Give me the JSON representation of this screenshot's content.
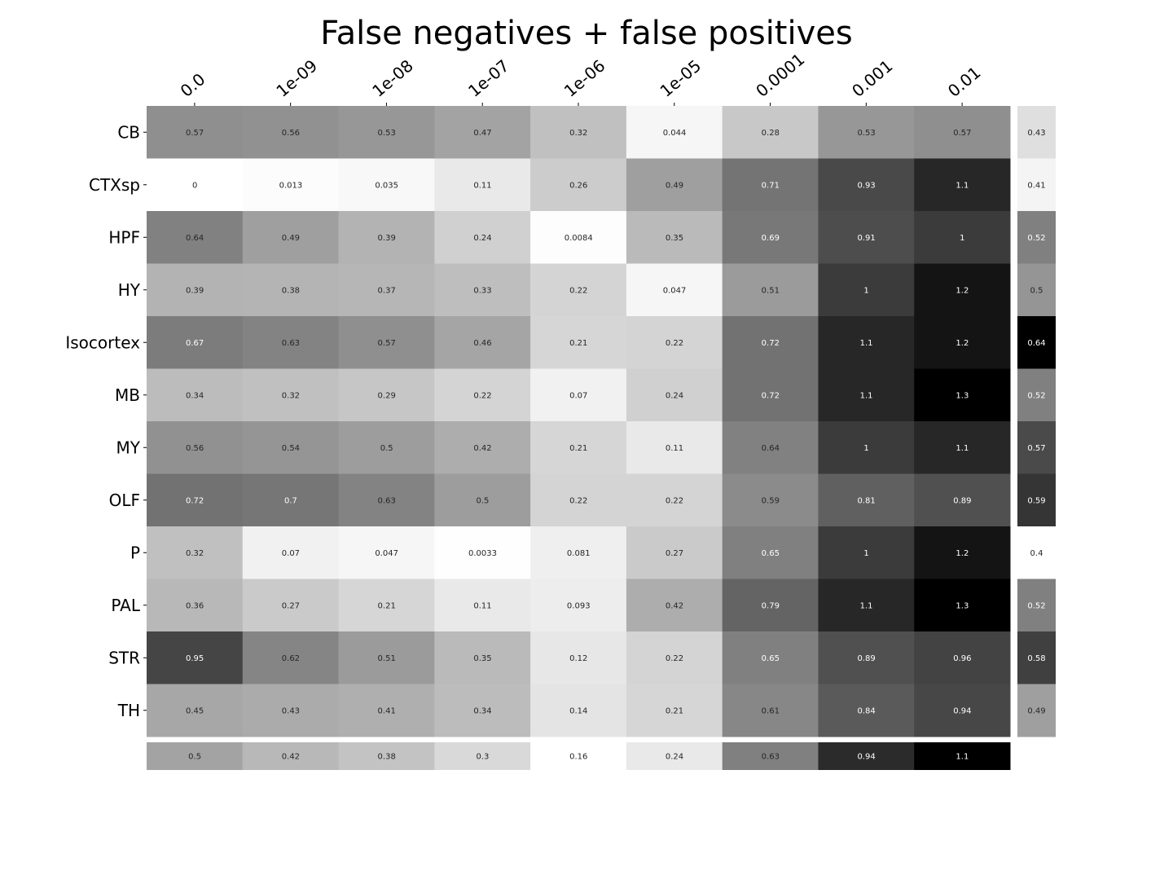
{
  "chart_data": {
    "type": "heatmap",
    "title": "False negatives + false positives",
    "colormap": "greys",
    "color_range": [
      0,
      1.3
    ],
    "columns": [
      "0.0",
      "1e-09",
      "1e-08",
      "1e-07",
      "1e-06",
      "1e-05",
      "0.0001",
      "0.001",
      "0.01"
    ],
    "rows": [
      "CB",
      "CTXsp",
      "HPF",
      "HY",
      "Isocortex",
      "MB",
      "MY",
      "OLF",
      "P",
      "PAL",
      "STR",
      "TH"
    ],
    "values": [
      [
        0.57,
        0.56,
        0.53,
        0.47,
        0.32,
        0.044,
        0.28,
        0.53,
        0.57
      ],
      [
        0,
        0.013,
        0.035,
        0.11,
        0.26,
        0.49,
        0.71,
        0.93,
        1.1
      ],
      [
        0.64,
        0.49,
        0.39,
        0.24,
        0.0084,
        0.35,
        0.69,
        0.91,
        1
      ],
      [
        0.39,
        0.38,
        0.37,
        0.33,
        0.22,
        0.047,
        0.51,
        1,
        1.2
      ],
      [
        0.67,
        0.63,
        0.57,
        0.46,
        0.21,
        0.22,
        0.72,
        1.1,
        1.2
      ],
      [
        0.34,
        0.32,
        0.29,
        0.22,
        0.07,
        0.24,
        0.72,
        1.1,
        1.3
      ],
      [
        0.56,
        0.54,
        0.5,
        0.42,
        0.21,
        0.11,
        0.64,
        1,
        1.1
      ],
      [
        0.72,
        0.7,
        0.63,
        0.5,
        0.22,
        0.22,
        0.59,
        0.81,
        0.89
      ],
      [
        0.32,
        0.07,
        0.047,
        0.0033,
        0.081,
        0.27,
        0.65,
        1,
        1.2
      ],
      [
        0.36,
        0.27,
        0.21,
        0.11,
        0.093,
        0.42,
        0.79,
        1.1,
        1.3
      ],
      [
        0.95,
        0.62,
        0.51,
        0.35,
        0.12,
        0.22,
        0.65,
        0.89,
        0.96
      ],
      [
        0.45,
        0.43,
        0.41,
        0.34,
        0.14,
        0.21,
        0.61,
        0.84,
        0.94
      ]
    ],
    "row_means": [
      0.43,
      0.41,
      0.52,
      0.5,
      0.64,
      0.52,
      0.57,
      0.59,
      0.4,
      0.52,
      0.58,
      0.49
    ],
    "column_means": [
      0.5,
      0.42,
      0.38,
      0.3,
      0.16,
      0.24,
      0.63,
      0.94,
      1.1
    ]
  }
}
